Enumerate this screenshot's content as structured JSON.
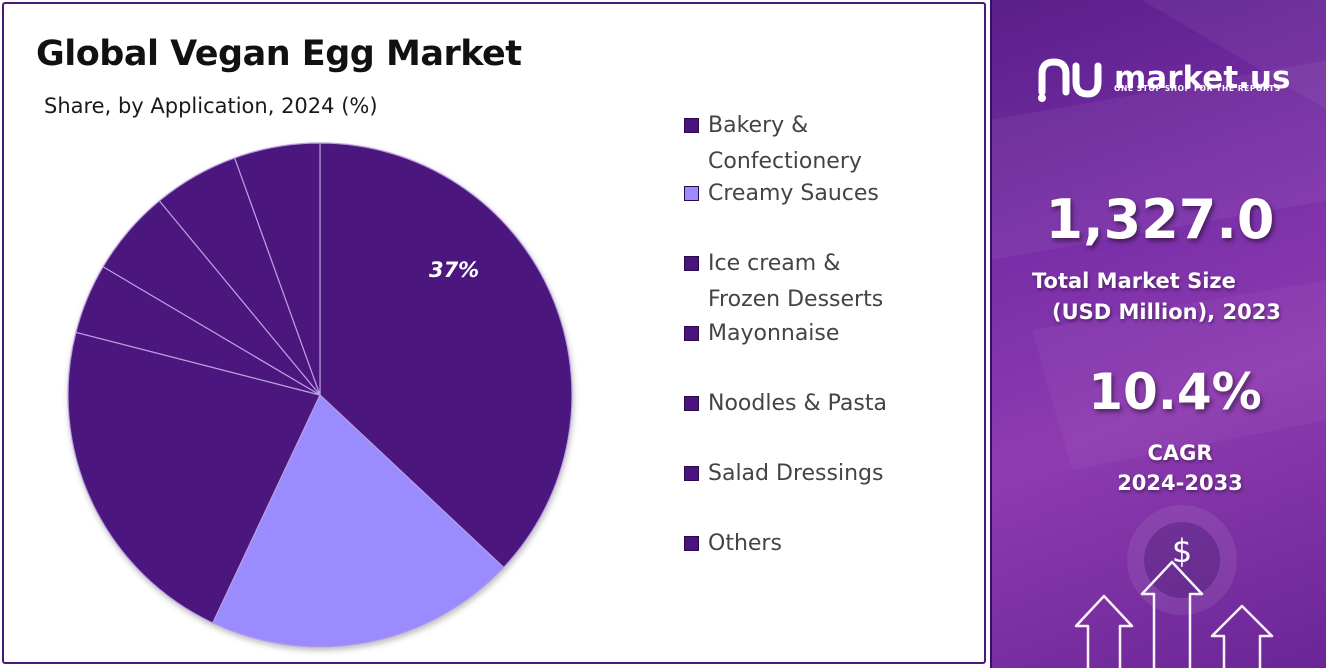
{
  "chart_data": {
    "type": "pie",
    "title": "Global Vegan Egg Market",
    "subtitle": "Share, by Application, 2024 (%)",
    "categories": [
      "Bakery & Confectionery",
      "Creamy Sauces",
      "Ice cream & Frozen Desserts",
      "Mayonnaise",
      "Noodles & Pasta",
      "Salad Dressings",
      "Others"
    ],
    "values": [
      37,
      20,
      22,
      4.5,
      5.5,
      5.5,
      5.5
    ],
    "colors": [
      "#4b137e",
      "#9a8cff",
      "#4b137e",
      "#4b137e",
      "#4b137e",
      "#4b137e",
      "#4b137e"
    ],
    "data_labels": [
      "37%",
      "",
      "",
      "",
      "",
      "",
      ""
    ],
    "legend_placement": "right"
  },
  "legend": {
    "items": [
      {
        "label": "Bakery & Confectionery",
        "color": "#4b137e"
      },
      {
        "label": "Creamy Sauces",
        "color": "#9a8cff"
      },
      {
        "label": "Ice cream & Frozen Desserts",
        "color": "#4b137e"
      },
      {
        "label": "Mayonnaise",
        "color": "#4b137e"
      },
      {
        "label": "Noodles & Pasta",
        "color": "#4b137e"
      },
      {
        "label": "Salad Dressings",
        "color": "#4b137e"
      },
      {
        "label": "Others",
        "color": "#4b137e"
      }
    ]
  },
  "brand": {
    "name": "market.us",
    "tagline": "ONE STOP SHOP FOR THE REPORTS"
  },
  "stats": {
    "market_size_value": "1,327.0",
    "market_size_label_1": "Total Market Size",
    "market_size_label_2": "(USD Million), 2023",
    "cagr_value": "10.4%",
    "cagr_label_1": "CAGR",
    "cagr_label_2": "2024-2033"
  },
  "icons": {
    "dollar": "$"
  }
}
